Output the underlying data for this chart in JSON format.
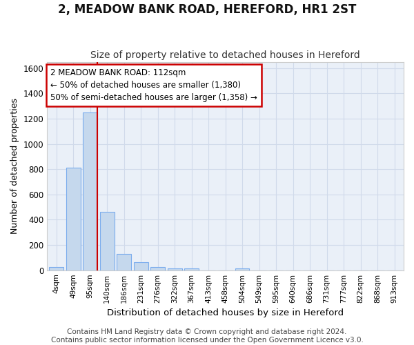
{
  "title": "2, MEADOW BANK ROAD, HEREFORD, HR1 2ST",
  "subtitle": "Size of property relative to detached houses in Hereford",
  "xlabel": "Distribution of detached houses by size in Hereford",
  "ylabel": "Number of detached properties",
  "bar_color": "#c5d8ed",
  "bar_edge_color": "#7aaced",
  "background_color": "#eaf0f8",
  "grid_color": "#d0daea",
  "bin_labels": [
    "4sqm",
    "49sqm",
    "95sqm",
    "140sqm",
    "186sqm",
    "231sqm",
    "276sqm",
    "322sqm",
    "367sqm",
    "413sqm",
    "458sqm",
    "504sqm",
    "549sqm",
    "595sqm",
    "640sqm",
    "686sqm",
    "731sqm",
    "777sqm",
    "822sqm",
    "868sqm",
    "913sqm"
  ],
  "bar_heights": [
    25,
    810,
    1250,
    460,
    130,
    65,
    25,
    15,
    15,
    0,
    0,
    15,
    0,
    0,
    0,
    0,
    0,
    0,
    0,
    0,
    0
  ],
  "red_line_x": 2.0,
  "annotation_text": "2 MEADOW BANK ROAD: 112sqm\n← 50% of detached houses are smaller (1,380)\n50% of semi-detached houses are larger (1,358) →",
  "annotation_box_color": "#ffffff",
  "annotation_box_edge": "#cc0000",
  "red_line_color": "#cc0000",
  "ylim": [
    0,
    1650
  ],
  "yticks": [
    0,
    200,
    400,
    600,
    800,
    1000,
    1200,
    1400,
    1600
  ],
  "footer": "Contains HM Land Registry data © Crown copyright and database right 2024.\nContains public sector information licensed under the Open Government Licence v3.0.",
  "title_fontsize": 12,
  "subtitle_fontsize": 10,
  "xlabel_fontsize": 9.5,
  "ylabel_fontsize": 9,
  "footer_fontsize": 7.5,
  "annot_fontsize": 8.5
}
